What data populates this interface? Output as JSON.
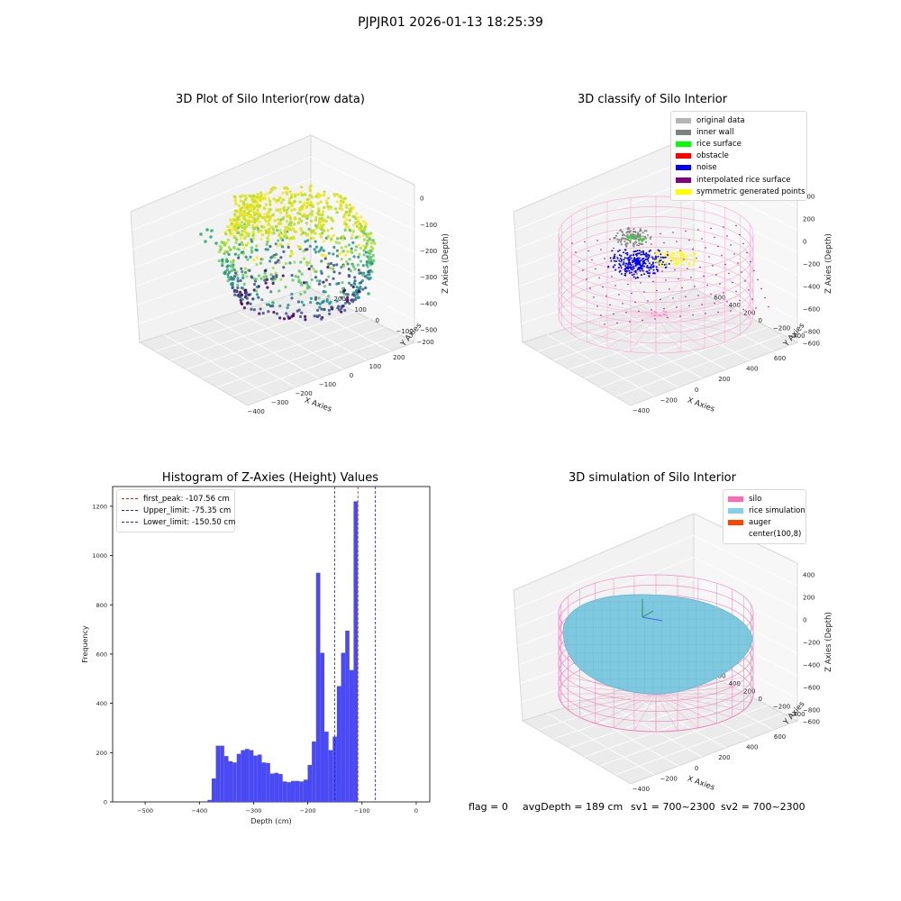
{
  "figure": {
    "suptitle": "PJPJR01 2026-01-13 18:25:39",
    "status": {
      "flag": "flag = 0",
      "avg_depth": "avgDepth = 189 cm",
      "sv1": "sv1 = 700~2300",
      "sv2": "sv2 = 700~2300"
    }
  },
  "colors": {
    "histogram_bar": "#4a4af5",
    "first_peak": "#e31a1c",
    "limits": "#1f1fd6",
    "silo_wire": "#f080b8",
    "rice_fill": "#7ec8e0",
    "inner_wall": "#808080",
    "rice_surface": "#00ff00",
    "obstacle": "#ff0000",
    "noise": "#0000ff",
    "interpolated": "#800080",
    "symmetric": "#ffff00",
    "original": "#b4b4b4",
    "auger": "#ff4500"
  },
  "chart_data": [
    {
      "type": "scatter",
      "title": "3D Plot of Silo Interior(row data)",
      "xlabel": "X Axies",
      "ylabel": "Y Axies",
      "zlabel": "Z Axies (Depth)",
      "xticks": [
        "−400",
        "−300",
        "−200",
        "−100",
        "0",
        "100",
        "200"
      ],
      "yticks": [
        "−200",
        "−100",
        "0",
        "100",
        "200"
      ],
      "zticks": [
        "0",
        "−100",
        "−200",
        "−300",
        "−400",
        "−500"
      ],
      "xlim": [
        -450,
        230
      ],
      "ylim": [
        -230,
        260
      ],
      "zlim": [
        -560,
        10
      ]
    },
    {
      "type": "scatter",
      "title": "3D classify of Silo Interior",
      "xlabel": "X Axies",
      "ylabel": "Y Axies",
      "zlabel": "Z Axies (Depth)",
      "xticks": [
        "−400",
        "−200",
        "0",
        "200",
        "400",
        "600"
      ],
      "yticks": [
        "−600",
        "−400",
        "−200",
        "0",
        "200",
        "400",
        "600"
      ],
      "zticks": [
        "400",
        "200",
        "0",
        "−200",
        "−400",
        "−600",
        "−800"
      ],
      "legend": [
        "original data",
        "inner wall",
        "rice surface",
        "obstacle",
        "noise",
        "interpolated rice surface",
        "symmetric generated points"
      ],
      "legend_position": "top-right"
    },
    {
      "type": "bar",
      "title": "Histogram of Z-Axies (Height) Values",
      "xlabel": "Depth (cm)",
      "ylabel": "Frequency",
      "xlim": [
        -560,
        25
      ],
      "ylim": [
        0,
        1280
      ],
      "xticks": [
        -500,
        -400,
        -300,
        -200,
        -100,
        0
      ],
      "xtick_labels": [
        "−500",
        "−400",
        "−300",
        "−200",
        "−100",
        "0"
      ],
      "yticks": [
        0,
        200,
        400,
        600,
        800,
        1000,
        1200
      ],
      "bin_start": -385,
      "bin_width": 7.7,
      "values": [
        8,
        95,
        228,
        228,
        186,
        165,
        160,
        195,
        210,
        215,
        210,
        188,
        192,
        160,
        158,
        115,
        118,
        113,
        83,
        80,
        85,
        85,
        83,
        90,
        150,
        245,
        930,
        605,
        285,
        210,
        265,
        470,
        605,
        695,
        535,
        1220
      ],
      "vlines": [
        {
          "label": "first_peak: -107.56 cm",
          "x": -107.56,
          "color": "#e31a1c"
        },
        {
          "label": "Upper_limit: -75.35 cm",
          "x": -75.35,
          "color": "#1f1fd6"
        },
        {
          "label": "Lower_limit: -150.50 cm",
          "x": -150.5,
          "color": "#1f1fd6"
        }
      ],
      "legend_position": "top-left"
    },
    {
      "type": "area",
      "title": "3D simulation of Silo Interior",
      "xlabel": "X Axies",
      "ylabel": "Y Axies",
      "zlabel": "Z Axies (Depth)",
      "xticks": [
        "−400",
        "−200",
        "0",
        "200",
        "400",
        "600"
      ],
      "yticks": [
        "−600",
        "−400",
        "−200",
        "0",
        "200",
        "400",
        "600"
      ],
      "zticks": [
        "400",
        "200",
        "0",
        "−200",
        "−400",
        "−600",
        "−800"
      ],
      "legend": [
        "silo",
        "rice simulation",
        "auger",
        "center(100,8)"
      ],
      "legend_position": "top-right"
    }
  ]
}
